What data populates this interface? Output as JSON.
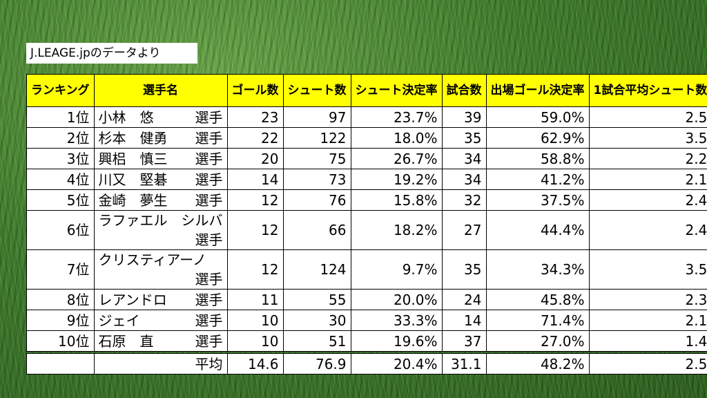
{
  "source_label": "J.LEAGE.jpのデータより",
  "headers": {
    "rank": "ランキング",
    "player": "選手名",
    "goals": "ゴール数",
    "shots": "シュート数",
    "shot_rate": "シュート決定率",
    "matches": "試合数",
    "appearance_rate": "出場ゴール決定率",
    "shots_per_match": "1試合平均シュート数"
  },
  "rows": [
    {
      "rank": "1位",
      "name": "小林　悠",
      "suffix": "選手",
      "goals": "23",
      "shots": "97",
      "shot_rate": "23.7%",
      "matches": "39",
      "appearance_rate": "59.0%",
      "shots_per_match": "2.5"
    },
    {
      "rank": "2位",
      "name": "杉本　健勇",
      "suffix": "選手",
      "goals": "22",
      "shots": "122",
      "shot_rate": "18.0%",
      "matches": "35",
      "appearance_rate": "62.9%",
      "shots_per_match": "3.5"
    },
    {
      "rank": "3位",
      "name": "興梠　慎三",
      "suffix": "選手",
      "goals": "20",
      "shots": "75",
      "shot_rate": "26.7%",
      "matches": "34",
      "appearance_rate": "58.8%",
      "shots_per_match": "2.2"
    },
    {
      "rank": "4位",
      "name": "川又　堅碁",
      "suffix": "選手",
      "goals": "14",
      "shots": "73",
      "shot_rate": "19.2%",
      "matches": "34",
      "appearance_rate": "41.2%",
      "shots_per_match": "2.1"
    },
    {
      "rank": "5位",
      "name": "金崎　夢生",
      "suffix": "選手",
      "goals": "12",
      "shots": "76",
      "shot_rate": "15.8%",
      "matches": "32",
      "appearance_rate": "37.5%",
      "shots_per_match": "2.4"
    },
    {
      "rank": "6位",
      "name": "ラファエル　シルバ",
      "suffix": "選手",
      "goals": "12",
      "shots": "66",
      "shot_rate": "18.2%",
      "matches": "27",
      "appearance_rate": "44.4%",
      "shots_per_match": "2.4"
    },
    {
      "rank": "7位",
      "name": "クリスティアーノ",
      "suffix": "選手",
      "goals": "12",
      "shots": "124",
      "shot_rate": "9.7%",
      "matches": "35",
      "appearance_rate": "34.3%",
      "shots_per_match": "3.5"
    },
    {
      "rank": "8位",
      "name": "レアンドロ",
      "suffix": "選手",
      "goals": "11",
      "shots": "55",
      "shot_rate": "20.0%",
      "matches": "24",
      "appearance_rate": "45.8%",
      "shots_per_match": "2.3"
    },
    {
      "rank": "9位",
      "name": "ジェイ",
      "suffix": "選手",
      "goals": "10",
      "shots": "30",
      "shot_rate": "33.3%",
      "matches": "14",
      "appearance_rate": "71.4%",
      "shots_per_match": "2.1"
    },
    {
      "rank": "10位",
      "name": "石原　直",
      "suffix": "選手",
      "goals": "10",
      "shots": "51",
      "shot_rate": "19.6%",
      "matches": "37",
      "appearance_rate": "27.0%",
      "shots_per_match": "1.4"
    }
  ],
  "average": {
    "label": "平均",
    "goals": "14.6",
    "shots": "76.9",
    "shot_rate": "20.4%",
    "matches": "31.1",
    "appearance_rate": "48.2%",
    "shots_per_match": "2.5"
  },
  "colors": {
    "header_bg": "#ffff00",
    "cell_bg": "#ffffff",
    "background": "#3f7d2c"
  }
}
